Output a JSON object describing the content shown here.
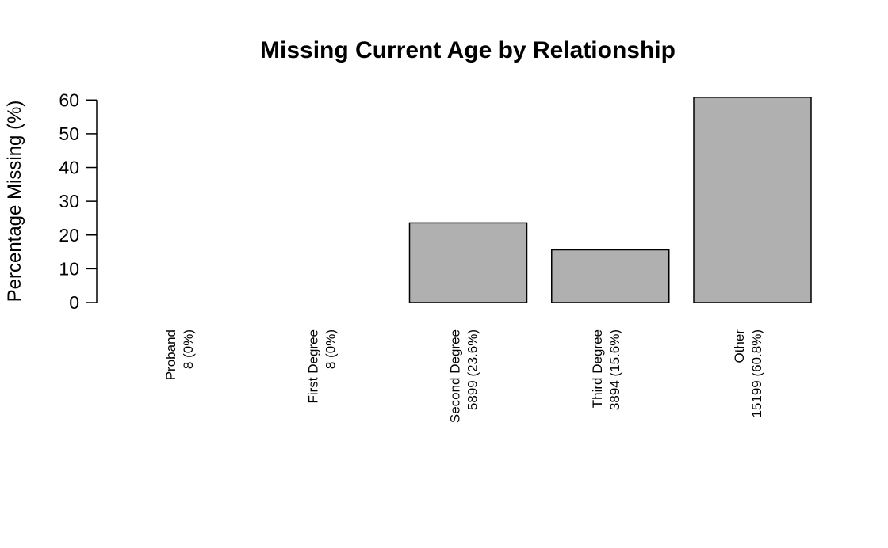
{
  "chart_data": {
    "type": "bar",
    "title": "Missing Current Age by Relationship",
    "xlabel": "",
    "ylabel": "Percentage Missing (%)",
    "ylim": [
      0,
      60
    ],
    "yticks": [
      0,
      10,
      20,
      30,
      40,
      50,
      60
    ],
    "ytick_labels": [
      "0",
      "10",
      "20",
      "30",
      "40",
      "50",
      "60"
    ],
    "categories": [
      {
        "line1": "Proband",
        "line2": "8 (0%)"
      },
      {
        "line1": "First Degree",
        "line2": "8 (0%)"
      },
      {
        "line1": "Second Degree",
        "line2": "5899 (23.6%)"
      },
      {
        "line1": "Third Degree",
        "line2": "3894 (15.6%)"
      },
      {
        "line1": "Other",
        "line2": "15199 (60.8%)"
      }
    ],
    "values": [
      0,
      0,
      23.6,
      15.6,
      60.8
    ],
    "bar_color": "#b0b0b0",
    "grid": false,
    "legend": "none"
  }
}
